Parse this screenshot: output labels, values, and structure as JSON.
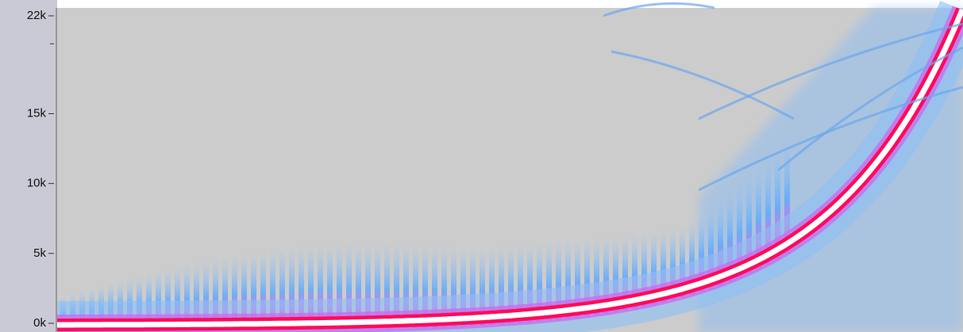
{
  "frequency_axis": {
    "ylim": [
      0,
      22000
    ],
    "ticks": [
      {
        "value": 0,
        "label": "0k"
      },
      {
        "value": 5000,
        "label": "5k"
      },
      {
        "value": 10000,
        "label": "10k"
      },
      {
        "value": 15000,
        "label": "15k"
      },
      {
        "value": 22000,
        "label": "22k"
      }
    ],
    "minor_ticks": [
      20000
    ]
  }
}
